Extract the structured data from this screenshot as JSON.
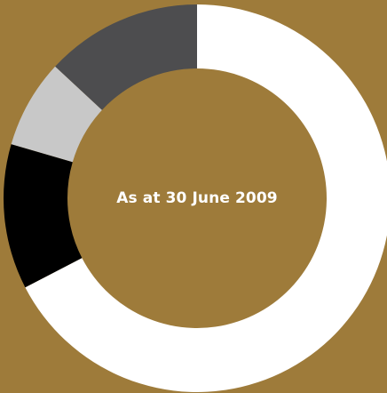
{
  "chart_data": {
    "type": "pie",
    "variant": "donut",
    "center_label": "As at 30 June 2009",
    "slices": [
      {
        "value": 67.4,
        "color": "#ffffff"
      },
      {
        "value": 12.1,
        "color": "#000000"
      },
      {
        "value": 7.4,
        "color": "#c8c8c8"
      },
      {
        "value": 13.1,
        "color": "#4d4d4f"
      }
    ],
    "start_angle_deg": 0,
    "direction": "clockwise",
    "legend": "none"
  },
  "colors": {
    "background": "#9e7b3a"
  }
}
